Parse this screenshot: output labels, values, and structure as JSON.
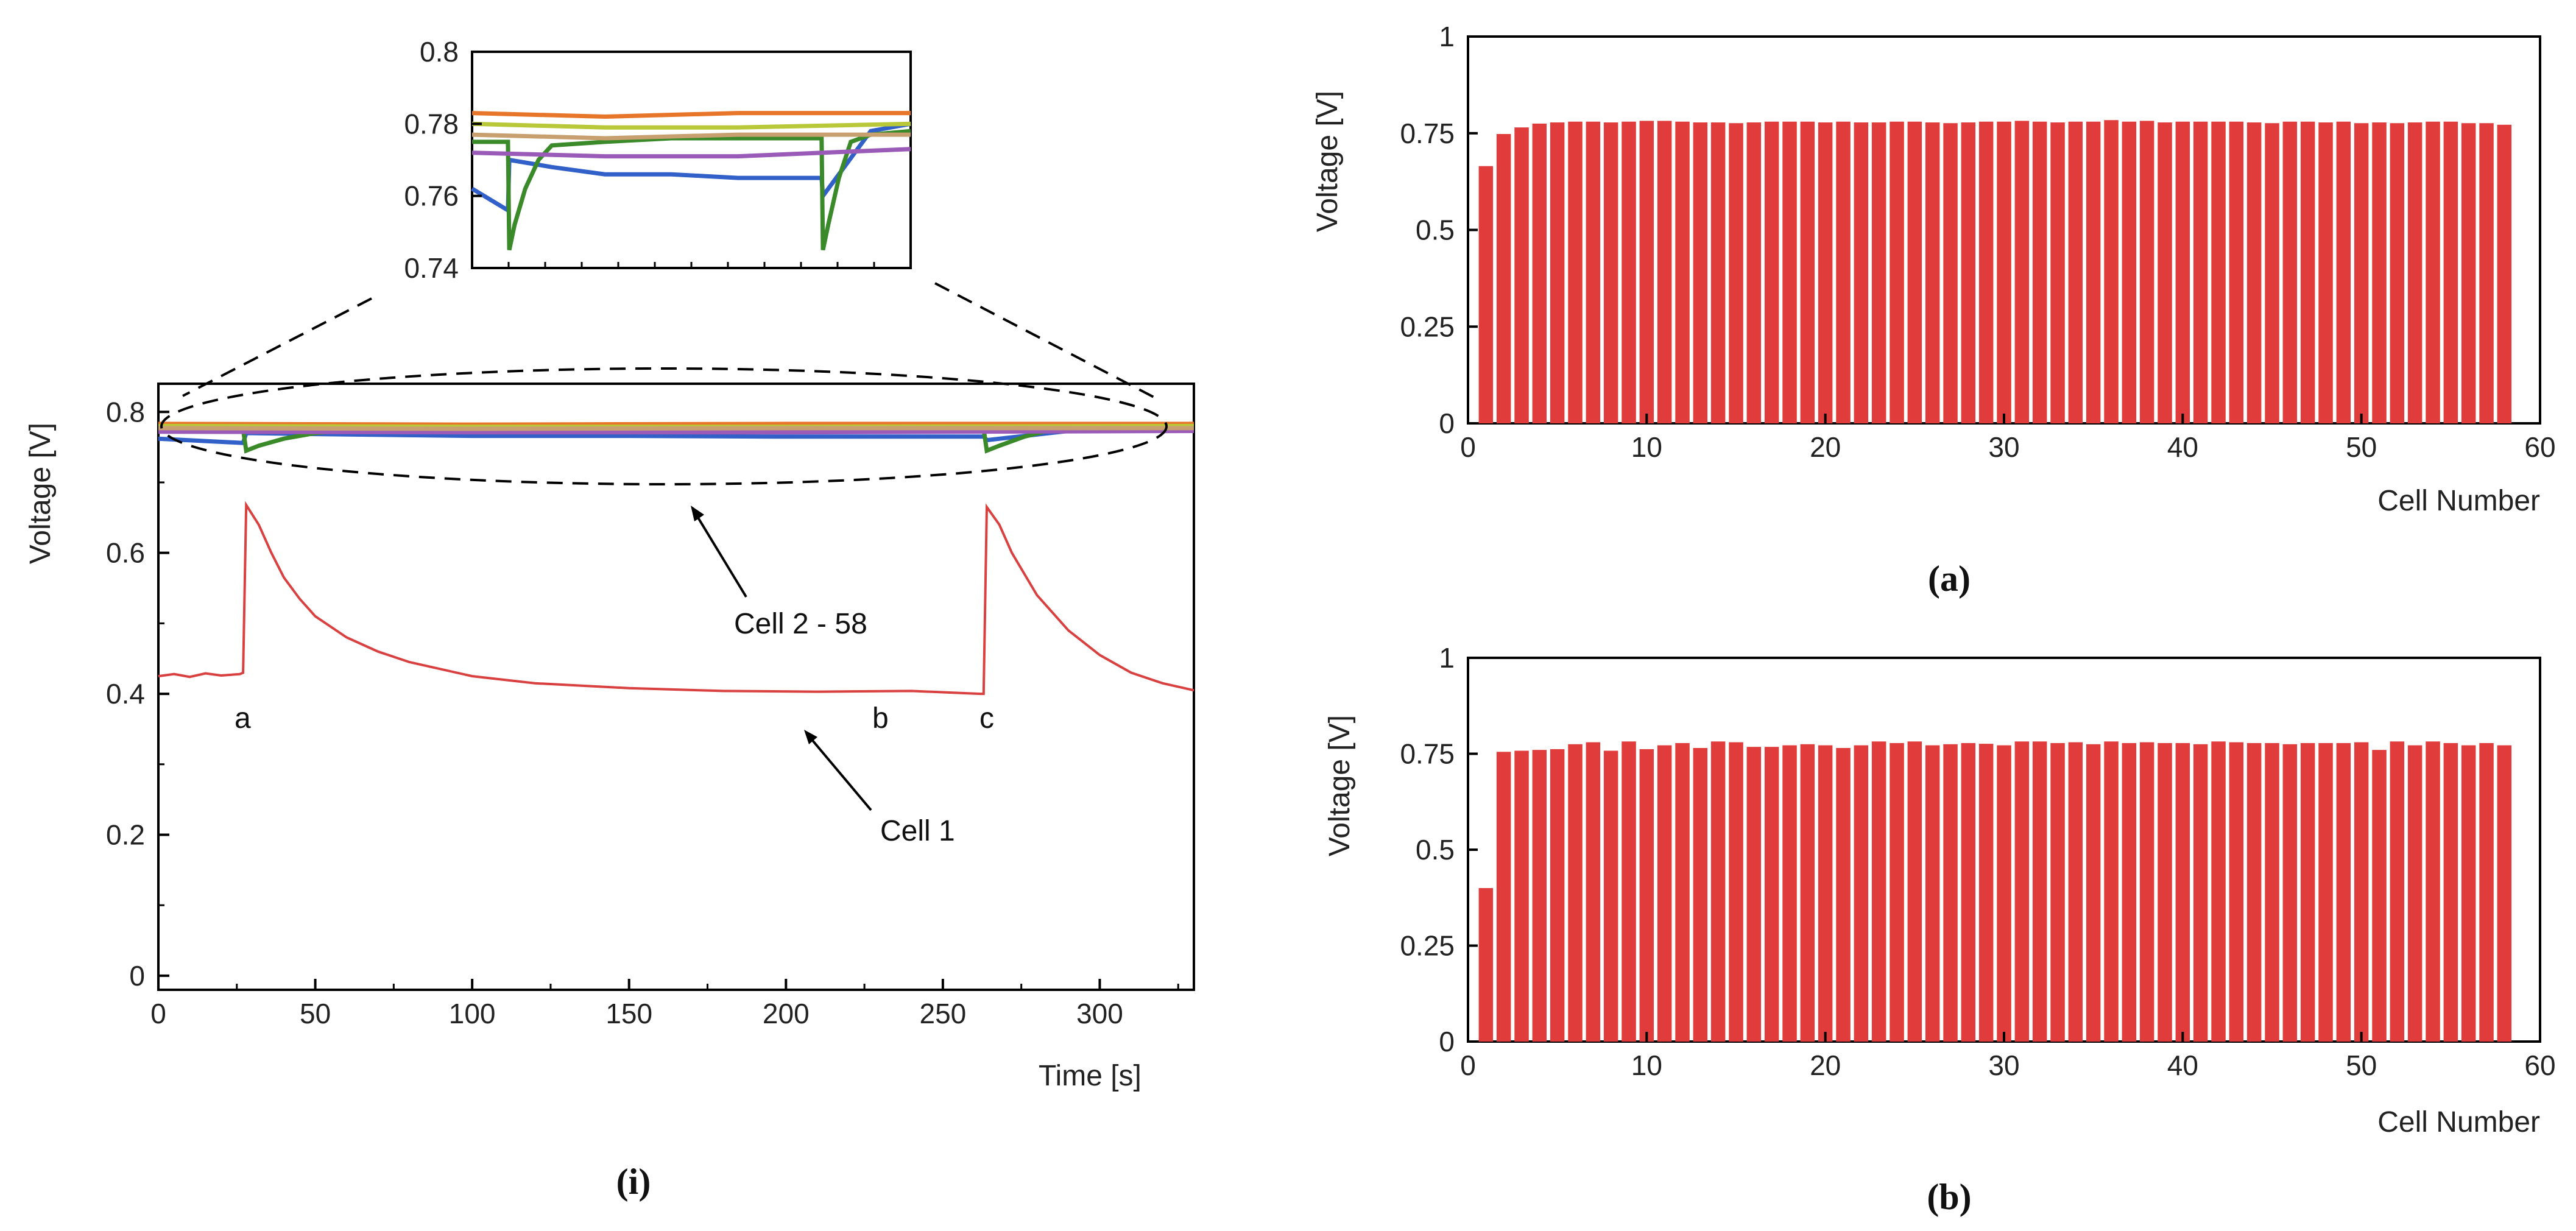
{
  "chart_data": [
    {
      "id": "i",
      "type": "line",
      "caption": "(i)",
      "title": "",
      "xlabel": "Time [s]",
      "ylabel": "Voltage [V]",
      "xlim": [
        0,
        330
      ],
      "ylim": [
        -0.02,
        0.84
      ],
      "xticks": [
        0,
        50,
        100,
        150,
        200,
        250,
        300
      ],
      "xtick_labels": [
        "0",
        "50",
        "100",
        "150",
        "200",
        "250",
        "300"
      ],
      "yticks": [
        0,
        0.2,
        0.4,
        0.6,
        0.8
      ],
      "ytick_labels": [
        "0",
        "0.2",
        "0.4",
        "0.6",
        "0.8"
      ],
      "series": [
        {
          "name": "Cell 1",
          "color": "#d94040",
          "x": [
            0,
            5,
            10,
            15,
            20,
            26,
            27,
            28,
            32,
            36,
            40,
            45,
            50,
            60,
            70,
            80,
            100,
            120,
            150,
            180,
            210,
            240,
            262,
            263,
            264,
            268,
            272,
            280,
            290,
            300,
            310,
            320,
            330
          ],
          "y": [
            0.425,
            0.428,
            0.424,
            0.429,
            0.426,
            0.428,
            0.43,
            0.668,
            0.64,
            0.6,
            0.565,
            0.535,
            0.51,
            0.48,
            0.46,
            0.445,
            0.425,
            0.415,
            0.408,
            0.404,
            0.403,
            0.404,
            0.4,
            0.4,
            0.665,
            0.64,
            0.6,
            0.54,
            0.49,
            0.455,
            0.43,
            0.415,
            0.405
          ]
        },
        {
          "name": "Cell 2 - 58 (blue)",
          "color": "#3060c8",
          "x": [
            0,
            27,
            28,
            60,
            100,
            150,
            200,
            263,
            264,
            300,
            330
          ],
          "y": [
            0.762,
            0.756,
            0.77,
            0.768,
            0.766,
            0.766,
            0.765,
            0.765,
            0.76,
            0.778,
            0.78
          ]
        },
        {
          "name": "Cell 2 - 58 (green)",
          "color": "#3a8a2a",
          "x": [
            0,
            27,
            28,
            32,
            40,
            50,
            60,
            100,
            150,
            200,
            263,
            264,
            268,
            276,
            285,
            300,
            330
          ],
          "y": [
            0.775,
            0.775,
            0.745,
            0.752,
            0.762,
            0.77,
            0.774,
            0.775,
            0.776,
            0.776,
            0.776,
            0.745,
            0.752,
            0.765,
            0.775,
            0.777,
            0.778
          ]
        },
        {
          "name": "Cell 2 - 58 (orange)",
          "color": "#e8762a",
          "x": [
            0,
            100,
            200,
            330
          ],
          "y": [
            0.783,
            0.782,
            0.783,
            0.783
          ]
        },
        {
          "name": "Cell 2 - 58 (yellow-green)",
          "color": "#b8c838",
          "x": [
            0,
            100,
            200,
            330
          ],
          "y": [
            0.78,
            0.779,
            0.779,
            0.78
          ]
        },
        {
          "name": "Cell 2 - 58 (purple)",
          "color": "#9a5ab8",
          "x": [
            0,
            100,
            200,
            330
          ],
          "y": [
            0.772,
            0.771,
            0.771,
            0.773
          ]
        },
        {
          "name": "Cell 2 - 58 (tan)",
          "color": "#c8a070",
          "x": [
            0,
            100,
            200,
            330
          ],
          "y": [
            0.777,
            0.776,
            0.777,
            0.777
          ]
        }
      ],
      "annotations": [
        {
          "text": "a",
          "x": 27,
          "y": 0.38
        },
        {
          "text": "b",
          "x": 230,
          "y": 0.38
        },
        {
          "text": "c",
          "x": 262,
          "y": 0.38
        },
        {
          "text": "Cell 1",
          "points_to": [
            205,
            0.4
          ]
        },
        {
          "text": "Cell 2 - 58",
          "points_to": [
            170,
            0.72
          ]
        }
      ],
      "inset": {
        "xlim": [
          0,
          330
        ],
        "ylim": [
          0.74,
          0.8
        ],
        "yticks": [
          0.74,
          0.76,
          0.78,
          0.8
        ],
        "ytick_labels": [
          "0.74",
          "0.76",
          "0.78",
          "0.8"
        ]
      }
    },
    {
      "id": "a",
      "type": "bar",
      "caption": "(a)",
      "title": "",
      "xlabel": "Cell Number",
      "ylabel": "Voltage [V]",
      "xlim": [
        0,
        60
      ],
      "ylim": [
        0,
        1
      ],
      "xticks": [
        0,
        10,
        20,
        30,
        40,
        50,
        60
      ],
      "xtick_labels": [
        "0",
        "10",
        "20",
        "30",
        "40",
        "50",
        "60"
      ],
      "yticks": [
        0,
        0.25,
        0.5,
        0.75,
        1
      ],
      "ytick_labels": [
        "0",
        "0.25",
        "0.5",
        "0.75",
        "1"
      ],
      "bar_color": "#e03c3c",
      "categories": [
        1,
        2,
        3,
        4,
        5,
        6,
        7,
        8,
        9,
        10,
        11,
        12,
        13,
        14,
        15,
        16,
        17,
        18,
        19,
        20,
        21,
        22,
        23,
        24,
        25,
        26,
        27,
        28,
        29,
        30,
        31,
        32,
        33,
        34,
        35,
        36,
        37,
        38,
        39,
        40,
        41,
        42,
        43,
        44,
        45,
        46,
        47,
        48,
        49,
        50,
        51,
        52,
        53,
        54,
        55,
        56,
        57,
        58
      ],
      "values": [
        0.665,
        0.748,
        0.765,
        0.775,
        0.778,
        0.78,
        0.78,
        0.778,
        0.78,
        0.782,
        0.782,
        0.78,
        0.778,
        0.778,
        0.776,
        0.778,
        0.78,
        0.78,
        0.78,
        0.778,
        0.78,
        0.778,
        0.778,
        0.78,
        0.78,
        0.778,
        0.776,
        0.778,
        0.78,
        0.78,
        0.782,
        0.78,
        0.778,
        0.78,
        0.78,
        0.784,
        0.78,
        0.782,
        0.778,
        0.78,
        0.78,
        0.78,
        0.78,
        0.778,
        0.776,
        0.78,
        0.78,
        0.778,
        0.78,
        0.776,
        0.778,
        0.776,
        0.778,
        0.78,
        0.78,
        0.776,
        0.776,
        0.772
      ]
    },
    {
      "id": "b",
      "type": "bar",
      "caption": "(b)",
      "title": "",
      "xlabel": "Cell Number",
      "ylabel": "Voltage [V]",
      "xlim": [
        0,
        60
      ],
      "ylim": [
        0,
        1
      ],
      "xticks": [
        0,
        10,
        20,
        30,
        40,
        50,
        60
      ],
      "xtick_labels": [
        "0",
        "10",
        "20",
        "30",
        "40",
        "50",
        "60"
      ],
      "yticks": [
        0,
        0.25,
        0.5,
        0.75,
        1
      ],
      "ytick_labels": [
        "0",
        "0.25",
        "0.5",
        "0.75",
        "1"
      ],
      "bar_color": "#e03c3c",
      "categories": [
        1,
        2,
        3,
        4,
        5,
        6,
        7,
        8,
        9,
        10,
        11,
        12,
        13,
        14,
        15,
        16,
        17,
        18,
        19,
        20,
        21,
        22,
        23,
        24,
        25,
        26,
        27,
        28,
        29,
        30,
        31,
        32,
        33,
        34,
        35,
        36,
        37,
        38,
        39,
        40,
        41,
        42,
        43,
        44,
        45,
        46,
        47,
        48,
        49,
        50,
        51,
        52,
        53,
        54,
        55,
        56,
        57,
        58
      ],
      "values": [
        0.4,
        0.755,
        0.758,
        0.76,
        0.762,
        0.775,
        0.78,
        0.758,
        0.782,
        0.762,
        0.772,
        0.778,
        0.765,
        0.782,
        0.78,
        0.768,
        0.768,
        0.772,
        0.775,
        0.772,
        0.765,
        0.772,
        0.782,
        0.778,
        0.782,
        0.772,
        0.775,
        0.778,
        0.776,
        0.772,
        0.782,
        0.782,
        0.778,
        0.78,
        0.775,
        0.782,
        0.778,
        0.78,
        0.778,
        0.778,
        0.775,
        0.782,
        0.78,
        0.778,
        0.778,
        0.775,
        0.778,
        0.778,
        0.778,
        0.78,
        0.76,
        0.782,
        0.772,
        0.782,
        0.778,
        0.772,
        0.778,
        0.772
      ]
    }
  ]
}
